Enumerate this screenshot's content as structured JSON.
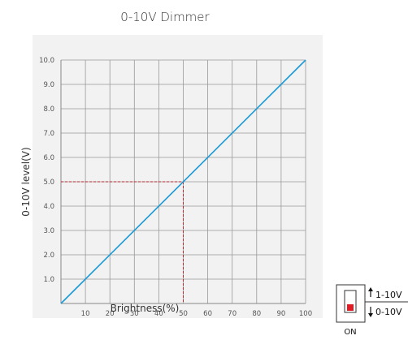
{
  "chart_data": {
    "type": "line",
    "title": "0-10V Dimmer",
    "xlabel": "Brightness(%)",
    "ylabel": "0-10V level(V)",
    "xlim": [
      0,
      100
    ],
    "ylim": [
      0,
      10
    ],
    "grid": true,
    "x_ticks": [
      "10",
      "20",
      "30",
      "40",
      "50",
      "60",
      "70",
      "80",
      "90",
      "100"
    ],
    "y_ticks": [
      "1.0",
      "2.0",
      "3.0",
      "4.0",
      "5.0",
      "6.0",
      "7.0",
      "8.0",
      "9.0",
      "10.0"
    ],
    "series": [
      {
        "x": [
          0,
          100
        ],
        "y": [
          0,
          10
        ],
        "color": "#1a9ad6"
      }
    ],
    "annotation": {
      "x": 50,
      "y": 5.0,
      "style": "dashed",
      "color": "#c0262d"
    }
  },
  "switch": {
    "label_top": "1-10V",
    "label_bottom": "0-10V",
    "on_label": "ON"
  },
  "colors": {
    "plot_background": "#f2f2f2",
    "grid": "#999999",
    "line": "#1a9ad6",
    "marker": "#c0262d",
    "switch_knob": "#e01b24"
  }
}
